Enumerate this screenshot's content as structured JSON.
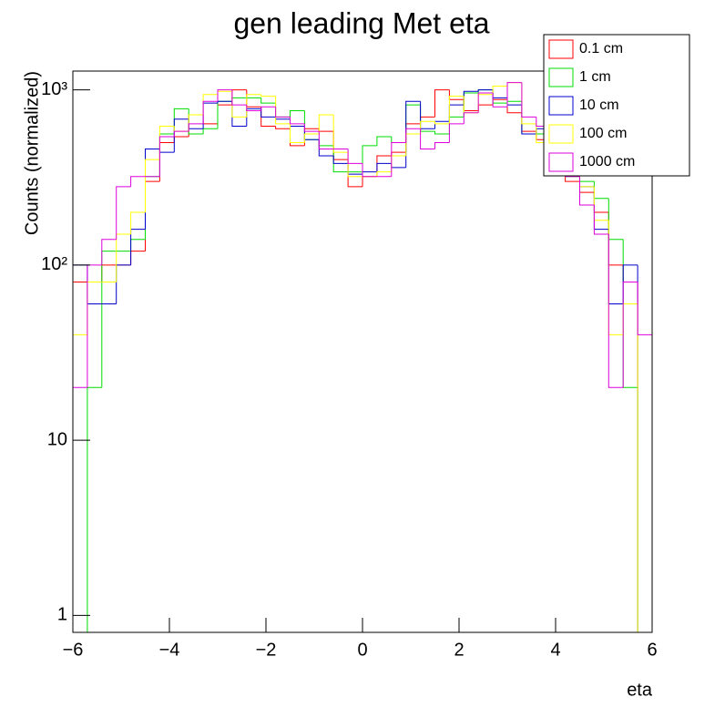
{
  "chart_data": {
    "type": "histogram",
    "title": "gen leading Met eta",
    "x_label": "eta",
    "y_label": "Counts (normalized)",
    "log_y": true,
    "legend": "top-right",
    "bins": [
      -6,
      -5.7,
      -5.4,
      -5.1,
      -4.8,
      -4.5,
      -4.2,
      -3.9,
      -3.6,
      -3.3,
      -3,
      -2.7,
      -2.4,
      -2.1,
      -1.8,
      -1.5,
      -1.2,
      -0.9,
      -0.6,
      -0.3,
      0,
      0.3,
      0.6,
      0.9,
      1.2,
      1.5,
      1.8,
      2.1,
      2.4,
      2.7,
      3,
      3.3,
      3.6,
      3.9,
      4.2,
      4.5,
      4.8,
      5.1,
      5.4,
      5.7,
      6
    ],
    "xlim": [
      -6,
      6
    ],
    "xticks": [
      {
        "value": -6,
        "label": "−6"
      },
      {
        "value": -4,
        "label": "−4"
      },
      {
        "value": -2,
        "label": "−2"
      },
      0,
      2,
      4,
      6
    ],
    "ylim": [
      0.8,
      1280
    ],
    "yticks": [
      1,
      10,
      {
        "value": 100,
        "label": "10²"
      },
      {
        "value": 1000,
        "label": "10³"
      }
    ],
    "series": [
      {
        "name": "0.1 cm",
        "color": "#ff0000",
        "values": [
          80,
          80,
          100,
          100,
          120,
          300,
          500,
          540,
          720,
          640,
          820,
          1000,
          800,
          620,
          600,
          480,
          600,
          580,
          400,
          280,
          320,
          420,
          440,
          640,
          700,
          1000,
          880,
          760,
          820,
          880,
          740,
          580,
          520,
          380,
          300,
          260,
          200,
          100,
          80,
          0
        ]
      },
      {
        "name": "1 cm",
        "color": "#00dd00",
        "values": [
          0,
          20,
          120,
          120,
          140,
          320,
          560,
          780,
          560,
          600,
          860,
          900,
          900,
          840,
          700,
          760,
          520,
          480,
          340,
          340,
          480,
          540,
          500,
          820,
          580,
          560,
          700,
          960,
          1000,
          840,
          860,
          560,
          560,
          460,
          320,
          300,
          240,
          140,
          20,
          0
        ]
      },
      {
        "name": "10 cm",
        "color": "#0000cc",
        "values": [
          100,
          60,
          60,
          100,
          160,
          460,
          440,
          680,
          600,
          840,
          860,
          620,
          780,
          700,
          680,
          620,
          520,
          420,
          380,
          330,
          340,
          380,
          360,
          860,
          600,
          660,
          820,
          980,
          1000,
          900,
          820,
          560,
          600,
          420,
          380,
          280,
          160,
          60,
          100,
          0
        ]
      },
      {
        "name": "100 cm",
        "color": "#ffff00",
        "values": [
          40,
          80,
          80,
          150,
          200,
          400,
          620,
          580,
          720,
          940,
          980,
          700,
          940,
          920,
          640,
          500,
          560,
          720,
          440,
          320,
          320,
          340,
          420,
          560,
          660,
          640,
          920,
          740,
          940,
          1050,
          1100,
          640,
          500,
          440,
          360,
          280,
          180,
          40,
          60,
          0
        ]
      },
      {
        "name": "1000 cm",
        "color": "#dd00dd",
        "values": [
          20,
          100,
          140,
          280,
          320,
          320,
          540,
          580,
          640,
          860,
          1000,
          820,
          760,
          800,
          700,
          640,
          580,
          460,
          460,
          380,
          320,
          320,
          500,
          600,
          460,
          500,
          640,
          740,
          960,
          800,
          1100,
          700,
          620,
          380,
          320,
          220,
          150,
          20,
          80,
          40
        ]
      }
    ]
  }
}
